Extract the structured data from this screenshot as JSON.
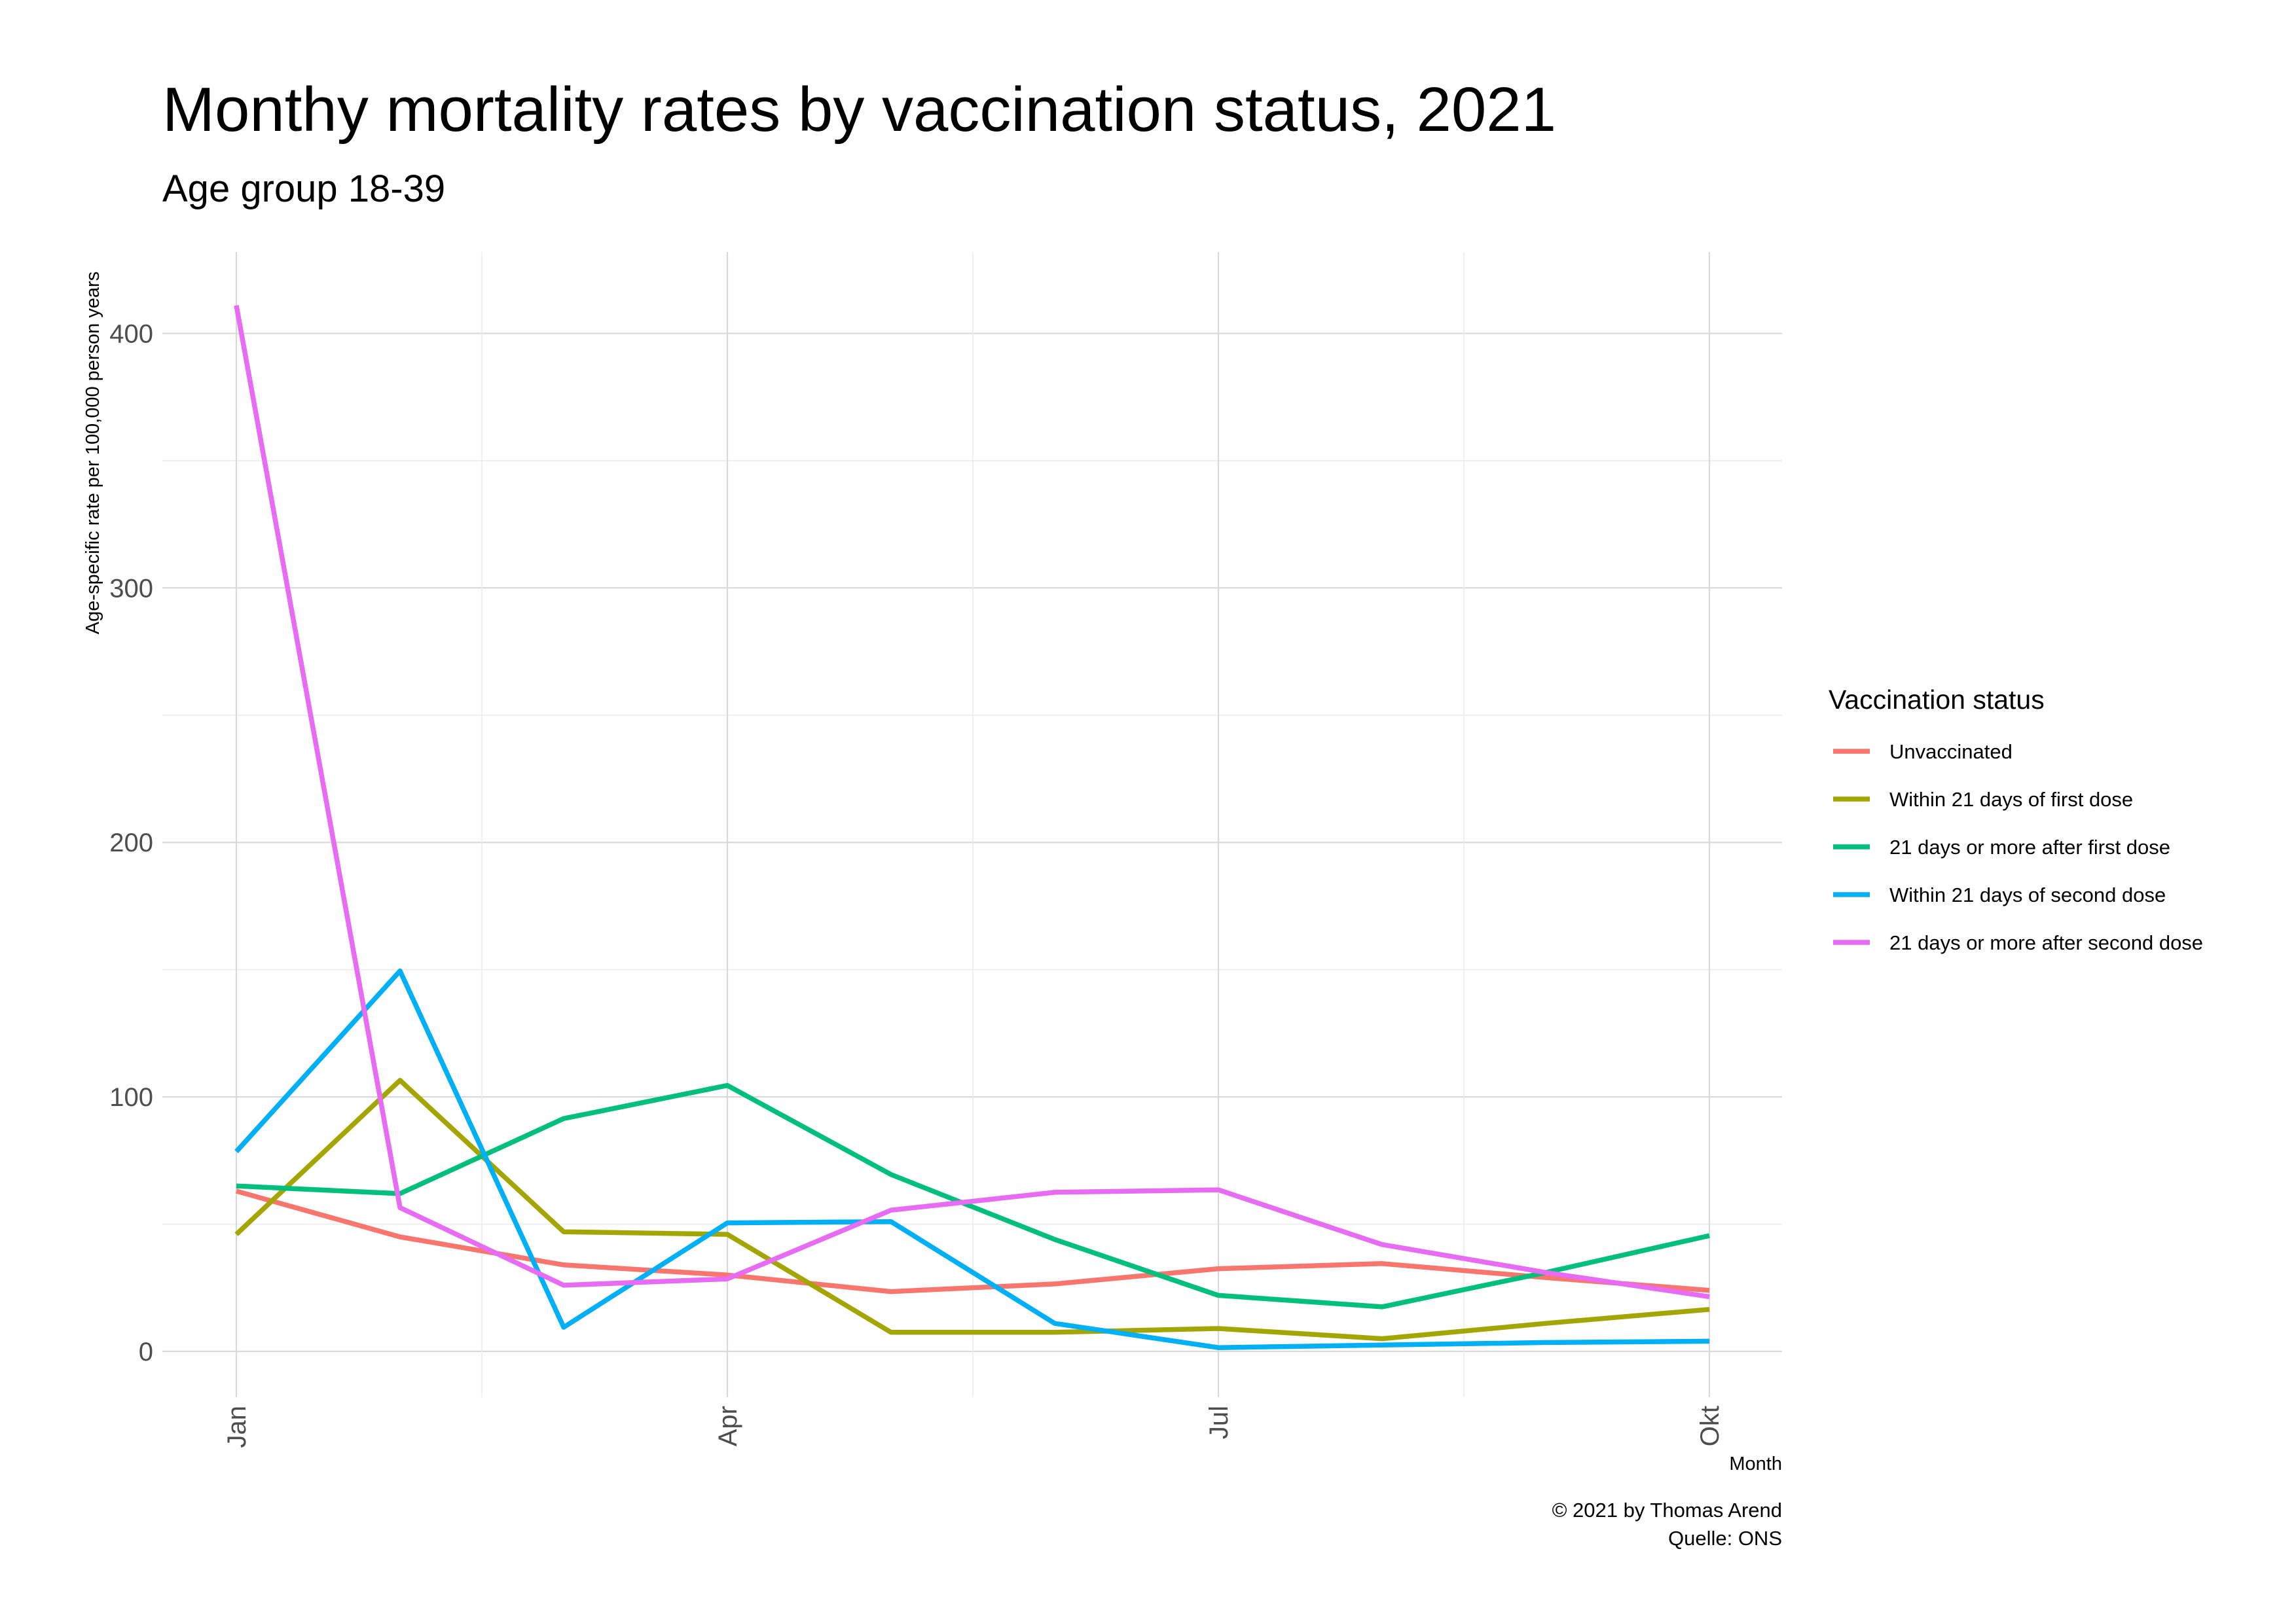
{
  "chart_data": {
    "type": "line",
    "title": "Monthy mortality rates by vaccination status, 2021",
    "subtitle": "Age group 18-39",
    "xlabel": "Month",
    "ylabel": "Age-specific rate per 100,000 person years",
    "caption": [
      "© 2021 by Thomas Arend",
      "Quelle: ONS"
    ],
    "x": [
      "Jan",
      "Feb",
      "Mar",
      "Apr",
      "May",
      "Jun",
      "Jul",
      "Aug",
      "Sep",
      "Okt"
    ],
    "x_tick_labels": [
      "Jan",
      "Apr",
      "Jul",
      "Okt"
    ],
    "y_ticks": [
      0,
      100,
      200,
      300,
      400
    ],
    "ylim": [
      -18,
      432
    ],
    "grid": true,
    "legend": {
      "title": "Vaccination status",
      "position": "right"
    },
    "series": [
      {
        "name": "Unvaccinated",
        "color": "#F8766D",
        "values": [
          63,
          45,
          34,
          30,
          23.5,
          26.5,
          32.5,
          34.5,
          29,
          24
        ]
      },
      {
        "name": "Within 21 days of first dose",
        "color": "#A3A500",
        "values": [
          46,
          106.5,
          47,
          46,
          7.5,
          7.5,
          9,
          5,
          11,
          16.5
        ]
      },
      {
        "name": "21 days or more after first dose",
        "color": "#00BF7D",
        "values": [
          65,
          62,
          91.5,
          104.5,
          69.5,
          44,
          22,
          17.5,
          31,
          45.5
        ]
      },
      {
        "name": "Within 21 days of second dose",
        "color": "#00B0F6",
        "values": [
          78.5,
          149.5,
          9.5,
          50.5,
          51,
          11,
          1.5,
          2.5,
          3.5,
          4
        ]
      },
      {
        "name": "21 days or more after second dose",
        "color": "#E76BF3",
        "values": [
          411,
          56.5,
          26,
          28.5,
          55.5,
          62.5,
          63.5,
          42,
          31,
          21.5
        ]
      }
    ]
  }
}
